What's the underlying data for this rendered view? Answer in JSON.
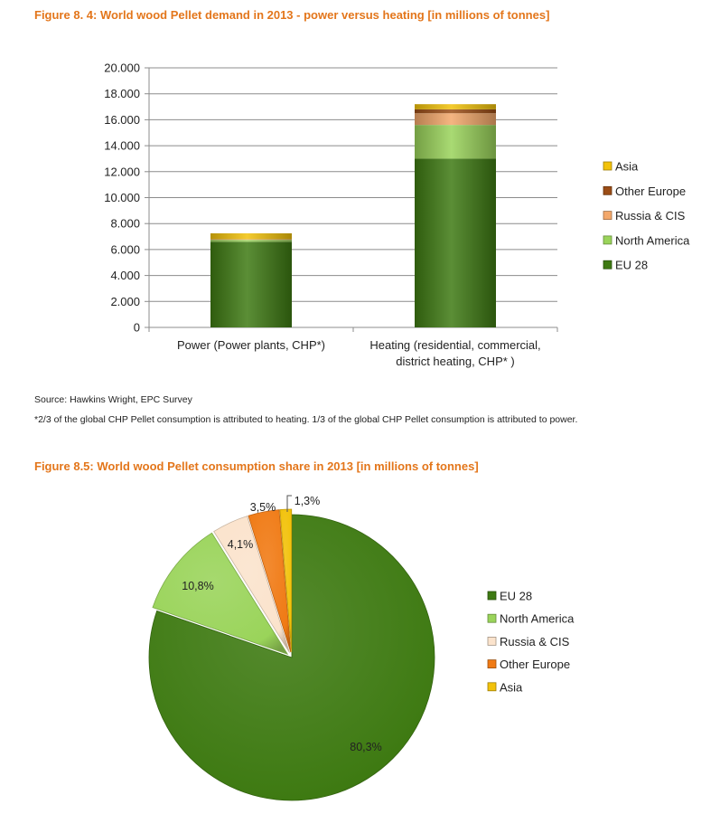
{
  "colors": {
    "EU 28": "#3e7a12",
    "North America": "#9ad45a",
    "Russia & CIS": "#f3a86b",
    "Other Europe": "#9b4d16",
    "Asia": "#f2c20a",
    "pie_Russia & CIS": "#fbe3cc",
    "pie_Other Europe": "#f07a14",
    "title": "#e3761b"
  },
  "titles": {
    "figure1": "Figure 8. 4: World wood Pellet demand in 2013 - power versus heating [in millions of tonnes]",
    "figure2": "Figure 8.5: World wood Pellet consumption share in 2013 [in millions of tonnes]"
  },
  "notes": {
    "source": "Source: Hawkins Wright, EPC Survey",
    "chp": "*2/3 of the global CHP Pellet consumption is attributed to heating. 1/3 of the global CHP Pellet consumption is attributed to power."
  },
  "chart_data": [
    {
      "type": "bar",
      "stacked": true,
      "title": "Figure 8. 4: World wood Pellet demand in 2013 - power versus heating [in millions of tonnes]",
      "categories": [
        "Power (Power plants, CHP*)",
        "Heating (residential, commercial, district heating, CHP* )"
      ],
      "category_lines": [
        [
          "Power (Power plants, CHP*)"
        ],
        [
          "Heating (residential, commercial,",
          "district heating, CHP* )"
        ]
      ],
      "series": [
        {
          "name": "EU 28",
          "values": [
            6.6,
            13.0
          ]
        },
        {
          "name": "North America",
          "values": [
            0.15,
            2.6
          ]
        },
        {
          "name": "Russia & CIS",
          "values": [
            0.05,
            0.9
          ]
        },
        {
          "name": "Other Europe",
          "values": [
            0.0,
            0.3
          ]
        },
        {
          "name": "Asia",
          "values": [
            0.45,
            0.4
          ]
        }
      ],
      "ylim": [
        0,
        20
      ],
      "yticks": [
        0,
        2,
        4,
        6,
        8,
        10,
        12,
        14,
        16,
        18,
        20
      ],
      "ytick_labels": [
        "0",
        "2.000",
        "4.000",
        "6.000",
        "8.000",
        "10.000",
        "12.000",
        "14.000",
        "16.000",
        "18.000",
        "20.000"
      ],
      "grid": true,
      "legend": {
        "position": "right",
        "order": [
          "Asia",
          "Other Europe",
          "Russia & CIS",
          "North America",
          "EU 28"
        ]
      }
    },
    {
      "type": "pie",
      "title": "Figure 8.5: World wood Pellet consumption share in 2013 [in millions of tonnes]",
      "slices": [
        {
          "name": "EU 28",
          "value": 80.3,
          "label": "80,3%"
        },
        {
          "name": "North America",
          "value": 10.8,
          "label": "10,8%"
        },
        {
          "name": "Russia & CIS",
          "value": 4.1,
          "label": "4,1%"
        },
        {
          "name": "Other Europe",
          "value": 3.5,
          "label": "3,5%"
        },
        {
          "name": "Asia",
          "value": 1.3,
          "label": "1,3%"
        }
      ],
      "start_angle": "12 o'clock, clockwise",
      "legend": {
        "position": "right",
        "order": [
          "EU 28",
          "North America",
          "Russia & CIS",
          "Other Europe",
          "Asia"
        ]
      }
    }
  ]
}
